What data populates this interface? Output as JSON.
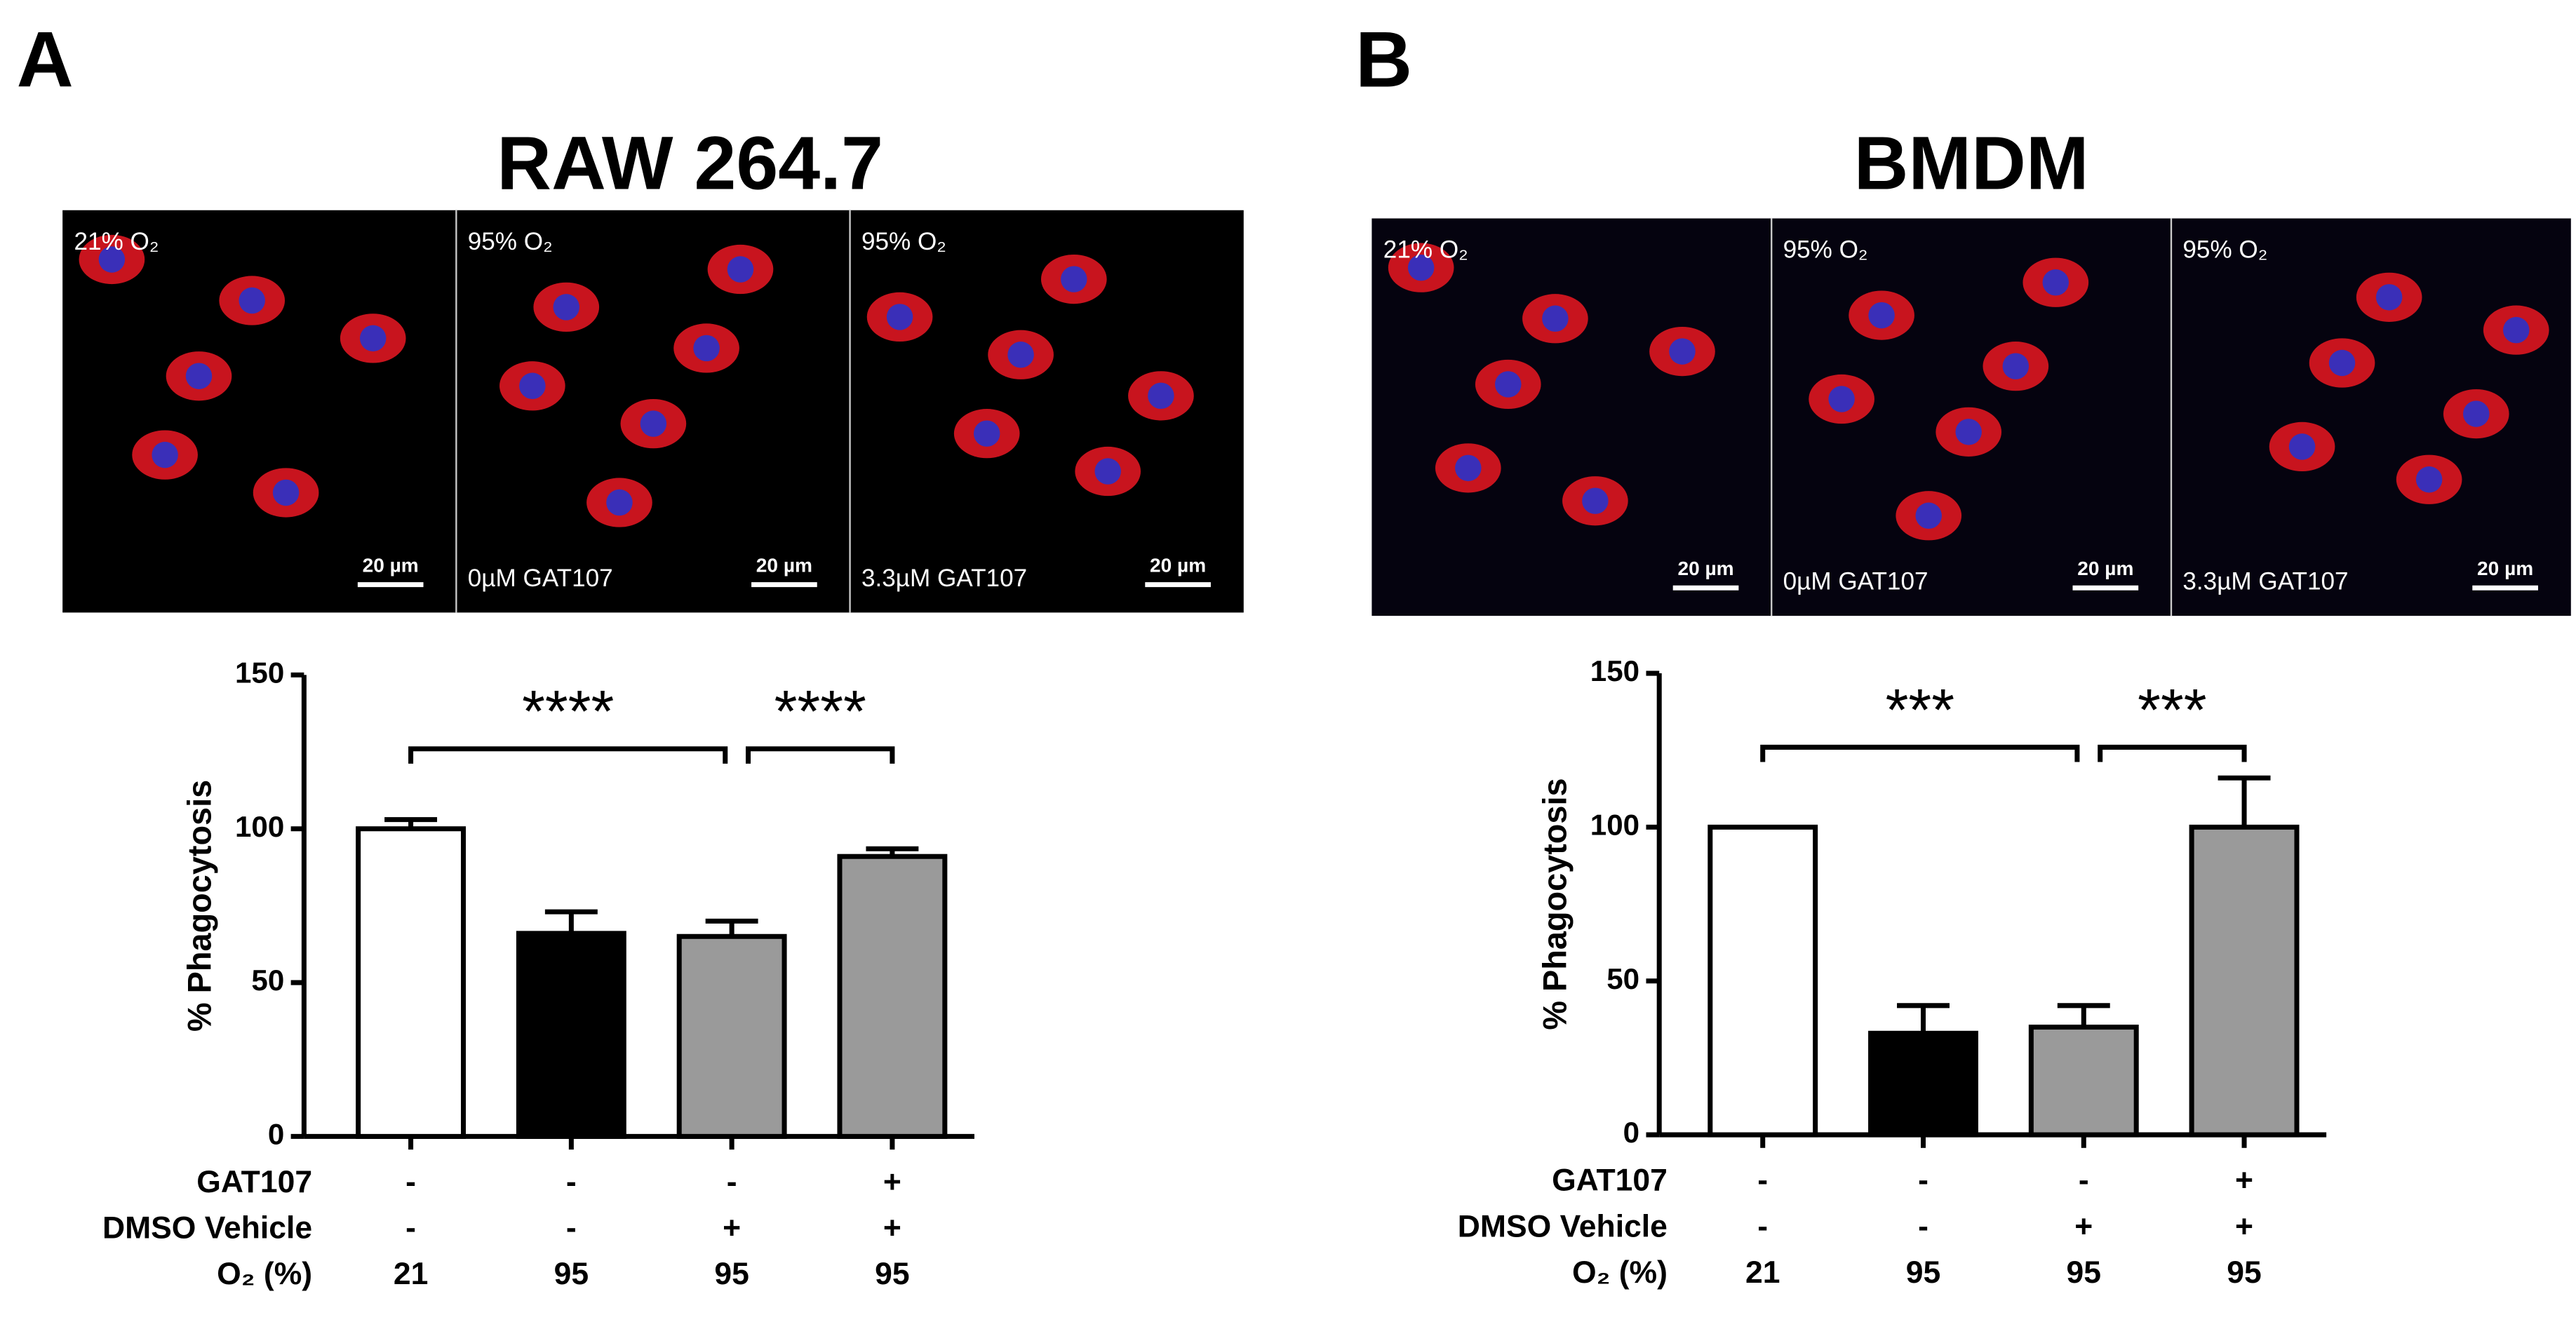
{
  "chart_data": [
    {
      "type": "bar",
      "panel": "A",
      "title": "RAW 264.7",
      "ylabel": "% Phagocytosis",
      "ylim": [
        0,
        150
      ],
      "yticks": [
        0,
        50,
        100,
        150
      ],
      "values": [
        100,
        66,
        65,
        91
      ],
      "errors": [
        3,
        7,
        5,
        2.5
      ],
      "colors": [
        "#ffffff",
        "#000000",
        "#9a9a9a",
        "#9a9a9a"
      ],
      "annotations": [
        "****",
        "****"
      ],
      "conditions": [
        {
          "name": "GAT107",
          "values": [
            "-",
            "-",
            "-",
            "+"
          ]
        },
        {
          "name": "DMSO Vehicle",
          "values": [
            "-",
            "-",
            "+",
            "+"
          ]
        },
        {
          "name": "O₂ (%)",
          "values": [
            "21",
            "95",
            "95",
            "95"
          ]
        }
      ],
      "images": [
        {
          "top": "21% O₂",
          "scale": "20 µm"
        },
        {
          "top": "95% O₂",
          "bottom": "0µM GAT107",
          "scale": "20 µm"
        },
        {
          "top": "95% O₂",
          "bottom": "3.3µM GAT107",
          "scale": "20 µm"
        }
      ]
    },
    {
      "type": "bar",
      "panel": "B",
      "title": "BMDM",
      "ylabel": "% Phagocytosis",
      "ylim": [
        0,
        150
      ],
      "yticks": [
        0,
        50,
        100,
        150
      ],
      "values": [
        100,
        33,
        35,
        100
      ],
      "errors": [
        0,
        9,
        7,
        16
      ],
      "colors": [
        "#ffffff",
        "#000000",
        "#9a9a9a",
        "#9a9a9a"
      ],
      "annotations": [
        "***",
        "***"
      ],
      "conditions": [
        {
          "name": "GAT107",
          "values": [
            "-",
            "-",
            "-",
            "+"
          ]
        },
        {
          "name": "DMSO Vehicle",
          "values": [
            "-",
            "-",
            "+",
            "+"
          ]
        },
        {
          "name": "O₂ (%)",
          "values": [
            "21",
            "95",
            "95",
            "95"
          ]
        }
      ],
      "images": [
        {
          "top": "21% O₂",
          "scale": "20 µm"
        },
        {
          "top": "95% O₂",
          "bottom": "0µM GAT107",
          "scale": "20 µm"
        },
        {
          "top": "95% O₂",
          "bottom": "3.3µM GAT107",
          "scale": "20 µm"
        }
      ]
    }
  ]
}
